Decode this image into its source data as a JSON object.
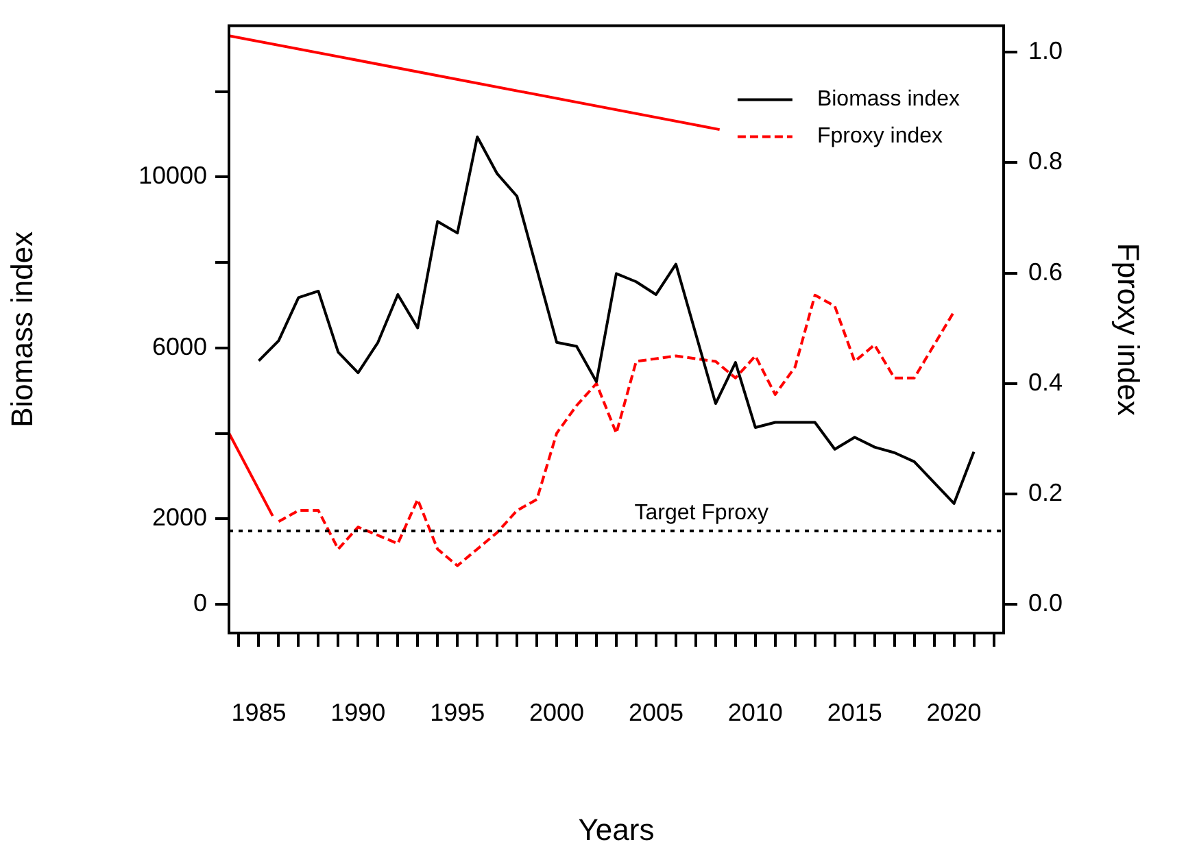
{
  "chart_data": {
    "type": "line",
    "xlabel": "Years",
    "ylabel": "Biomass index",
    "y2label": "Fproxy index",
    "xlim": [
      1983.5,
      2022.5
    ],
    "xticks": [
      {
        "value": 1984,
        "label": null
      },
      1985,
      {
        "value": 1986,
        "label": null
      },
      {
        "value": 1987,
        "label": null
      },
      {
        "value": 1988,
        "label": null
      },
      {
        "value": 1989,
        "label": null
      },
      1990,
      {
        "value": 1991,
        "label": null
      },
      {
        "value": 1992,
        "label": null
      },
      {
        "value": 1993,
        "label": null
      },
      {
        "value": 1994,
        "label": null
      },
      1995,
      {
        "value": 1996,
        "label": null
      },
      {
        "value": 1997,
        "label": null
      },
      {
        "value": 1998,
        "label": null
      },
      {
        "value": 1999,
        "label": null
      },
      2000,
      {
        "value": 2001,
        "label": null
      },
      {
        "value": 2002,
        "label": null
      },
      {
        "value": 2003,
        "label": null
      },
      {
        "value": 2004,
        "label": null
      },
      2005,
      {
        "value": 2006,
        "label": null
      },
      {
        "value": 2007,
        "label": null
      },
      {
        "value": 2008,
        "label": null
      },
      {
        "value": 2009,
        "label": null
      },
      2010,
      {
        "value": 2011,
        "label": null
      },
      {
        "value": 2012,
        "label": null
      },
      {
        "value": 2013,
        "label": null
      },
      {
        "value": 2014,
        "label": null
      },
      2015,
      {
        "value": 2016,
        "label": null
      },
      {
        "value": 2017,
        "label": null
      },
      {
        "value": 2018,
        "label": null
      },
      {
        "value": 2019,
        "label": null
      },
      2020,
      {
        "value": 2021,
        "label": null
      },
      {
        "value": 2022,
        "label": null
      }
    ],
    "ylim": [
      -670,
      13540
    ],
    "yticks": [
      0,
      2000,
      {
        "value": 4000,
        "label": null
      },
      6000,
      {
        "value": 8000,
        "label": null
      },
      10000,
      {
        "value": 12000,
        "label": null
      }
    ],
    "y2lim": [
      -0.052,
      1.048
    ],
    "y2ticks": [
      {
        "value": 0,
        "label": "0.0"
      },
      0.2,
      0.4,
      0.6,
      0.8,
      {
        "value": 1,
        "label": "1.0"
      }
    ],
    "series": [
      {
        "name": "Biomass index",
        "color": "#000000",
        "line_style": "solid",
        "x": [
          1985,
          1986,
          1987,
          1988,
          1989,
          1990,
          1991,
          1992,
          1993,
          1994,
          1995,
          1996,
          1997,
          1998,
          2000,
          2001,
          2002,
          2003,
          2004,
          2005,
          2006,
          2008,
          2009,
          2010,
          2011,
          2013,
          2014,
          2015,
          2016,
          2017,
          2018,
          2020,
          2021
        ],
        "values": [
          5700,
          6170,
          7180,
          7330,
          5900,
          5420,
          6130,
          7250,
          6470,
          8960,
          8690,
          10940,
          10080,
          9550,
          6130,
          6040,
          5210,
          7740,
          7550,
          7250,
          7960,
          4700,
          5660,
          4140,
          4260,
          4260,
          3630,
          3910,
          3680,
          3550,
          3340,
          2360,
          3570
        ]
      },
      {
        "name": "Fproxy index",
        "color": "#ff0000",
        "line_style": "dashed",
        "axis": "y2",
        "x": [
          1986,
          1987,
          1988,
          1989,
          1990,
          1992,
          1993,
          1994,
          1995,
          1996,
          1997,
          1998,
          1999,
          2000,
          2001,
          2002,
          2003,
          2004,
          2006,
          2008,
          2009,
          2010,
          2011,
          2012,
          2013,
          2014,
          2015,
          2016,
          2017,
          2018,
          2020
        ],
        "values": [
          0.15,
          0.17,
          0.17,
          0.1,
          0.14,
          0.11,
          0.19,
          0.1,
          0.07,
          0.1,
          0.13,
          0.17,
          0.19,
          0.31,
          0.36,
          0.4,
          0.31,
          0.44,
          0.45,
          0.44,
          0.41,
          0.45,
          0.38,
          0.43,
          0.56,
          0.54,
          0.44,
          0.47,
          0.41,
          0.41,
          0.53
        ]
      },
      {
        "color": "#ff0000",
        "line_style": "solid",
        "axis": "y2",
        "x": [
          1983.5,
          2008.2
        ],
        "values": [
          1.03,
          0.86
        ]
      },
      {
        "color": "#ff0000",
        "line_style": "solid",
        "axis": "y2",
        "x": [
          1983.5,
          1985.7
        ],
        "values": [
          0.31,
          0.16
        ]
      }
    ],
    "ref_lines": [
      {
        "axis": "y2",
        "value": 0.133,
        "label": "Target Fproxy",
        "color": "#000000",
        "line_style": "dotted"
      }
    ],
    "legend": "top right",
    "grid": false,
    "marker": "none"
  }
}
